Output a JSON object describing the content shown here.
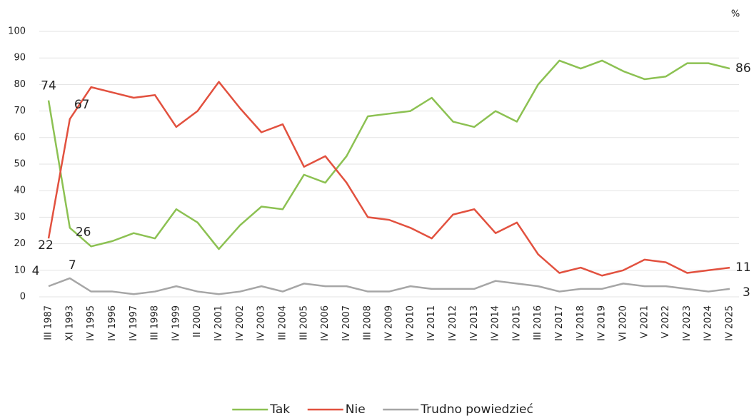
{
  "chart_data": {
    "type": "line",
    "unit": "%",
    "categories": [
      "III 1987",
      "XI 1993",
      "IV 1995",
      "IV 1996",
      "IV 1997",
      "III 1998",
      "IV 1999",
      "II 2000",
      "IV 2001",
      "IV 2002",
      "IV 2003",
      "III 2004",
      "III 2005",
      "IV 2006",
      "IV 2007",
      "III 2008",
      "IV 2009",
      "IV 2010",
      "IV 2011",
      "IV 2012",
      "IV 2013",
      "IV 2014",
      "IV 2015",
      "III 2016",
      "IV 2017",
      "IV 2018",
      "IV 2019",
      "VI 2020",
      "V 2021",
      "V 2022",
      "IV 2023",
      "IV 2024",
      "IV 2025"
    ],
    "series": [
      {
        "name": "Tak",
        "color": "#8cc152",
        "values": [
          74,
          26,
          19,
          21,
          24,
          22,
          33,
          28,
          18,
          27,
          34,
          33,
          46,
          43,
          53,
          68,
          69,
          70,
          75,
          66,
          64,
          70,
          66,
          80,
          89,
          86,
          89,
          85,
          82,
          83,
          88,
          88,
          86
        ]
      },
      {
        "name": "Nie",
        "color": "#e2513f",
        "values": [
          22,
          67,
          79,
          77,
          75,
          76,
          64,
          70,
          81,
          71,
          62,
          65,
          49,
          53,
          43,
          30,
          29,
          26,
          22,
          31,
          33,
          24,
          28,
          16,
          9,
          11,
          8,
          10,
          14,
          13,
          9,
          10,
          11
        ]
      },
      {
        "name": "Trudno powiedzieć",
        "color": "#a6a6a6",
        "values": [
          4,
          7,
          2,
          2,
          1,
          2,
          4,
          2,
          1,
          2,
          4,
          2,
          5,
          4,
          4,
          2,
          2,
          4,
          3,
          3,
          3,
          6,
          5,
          4,
          2,
          3,
          3,
          5,
          4,
          4,
          3,
          2,
          3
        ]
      }
    ],
    "labeled_points": [
      0,
      1,
      32
    ],
    "ylim": [
      0,
      100
    ],
    "yticks": [
      0,
      10,
      20,
      30,
      40,
      50,
      60,
      70,
      80,
      90,
      100
    ],
    "grid": true,
    "legend": "bottom"
  }
}
